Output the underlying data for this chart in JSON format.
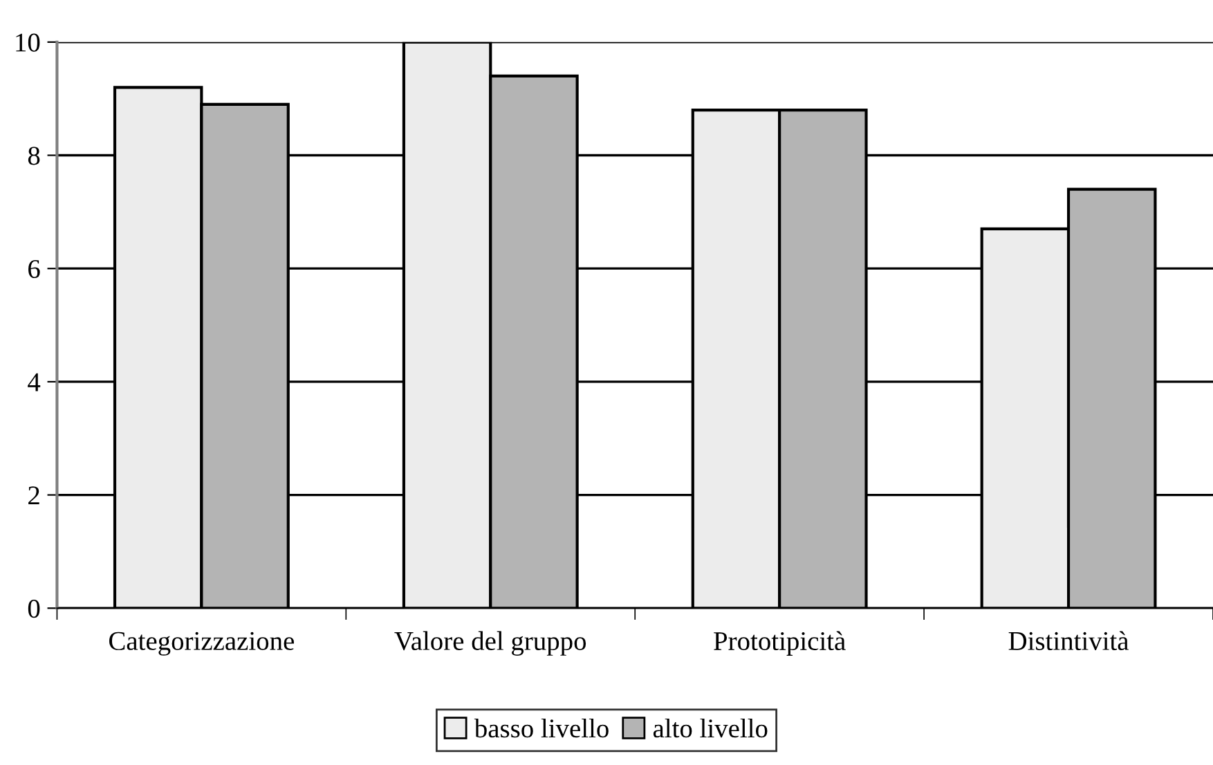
{
  "chart_data": {
    "type": "bar",
    "categories": [
      "Categorizzazione",
      "Valore del gruppo",
      "Prototipicità",
      "Distintività"
    ],
    "series": [
      {
        "name": "basso livello",
        "color": "#ececec",
        "values": [
          9.2,
          10.0,
          8.8,
          6.7
        ]
      },
      {
        "name": "alto livello",
        "color": "#b4b4b4",
        "values": [
          8.9,
          9.4,
          8.8,
          7.4
        ]
      }
    ],
    "ylim": [
      0,
      10
    ],
    "yticks": [
      0,
      2,
      4,
      6,
      8,
      10
    ],
    "grid": "y",
    "legend": "bottom"
  }
}
